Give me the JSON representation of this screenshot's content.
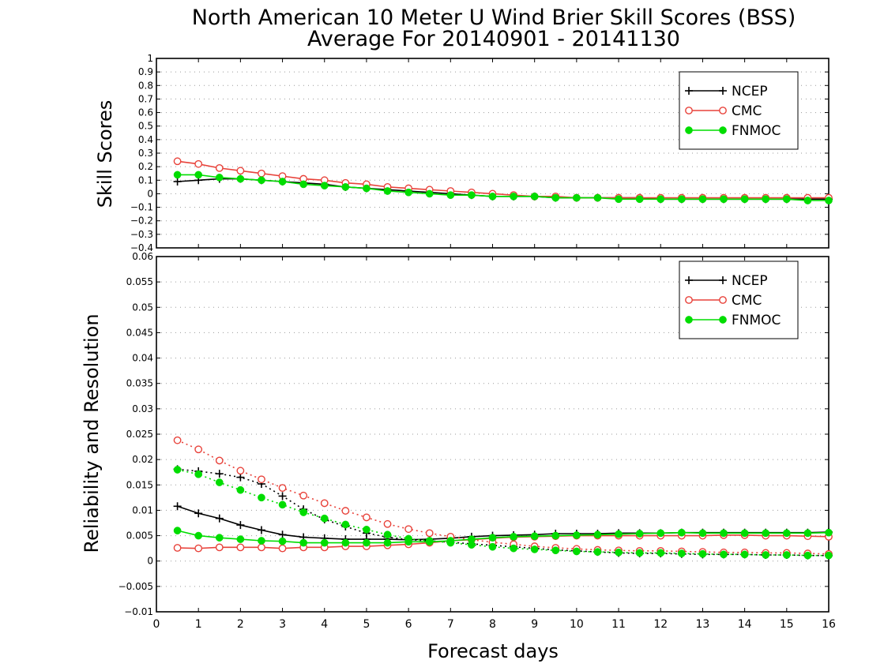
{
  "chart_data": [
    {
      "type": "line",
      "title": "North American 10 Meter U Wind Brier Skill Scores (BSS)",
      "subtitle": "Average For 20140901 - 20141130",
      "ylabel": "Skill Scores",
      "xlabel": "",
      "ylim": [
        -0.4,
        1
      ],
      "yticks": [
        "1",
        "0.9",
        "0.8",
        "0.7",
        "0.6",
        "0.5",
        "0.4",
        "0.3",
        "0.2",
        "0.1",
        "0",
        "−0.1",
        "−0.2",
        "−0.3",
        "−0.4"
      ],
      "xlim": [
        0,
        16
      ],
      "grid": true,
      "legend": "top-right",
      "x": [
        0.5,
        1,
        1.5,
        2,
        2.5,
        3,
        3.5,
        4,
        4.5,
        5,
        5.5,
        6,
        6.5,
        7,
        7.5,
        8,
        8.5,
        9,
        9.5,
        10,
        10.5,
        11,
        11.5,
        12,
        12.5,
        13,
        13.5,
        14,
        14.5,
        15,
        15.5,
        16
      ],
      "series": [
        {
          "name": "NCEP",
          "color": "#000000",
          "marker": "plus",
          "values": [
            0.09,
            0.1,
            0.11,
            0.11,
            0.1,
            0.09,
            0.08,
            0.07,
            0.05,
            0.04,
            0.03,
            0.02,
            0.01,
            0.0,
            -0.01,
            -0.02,
            -0.02,
            -0.02,
            -0.03,
            -0.03,
            -0.03,
            -0.03,
            -0.03,
            -0.04,
            -0.04,
            -0.04,
            -0.04,
            -0.04,
            -0.04,
            -0.04,
            -0.04,
            -0.04
          ]
        },
        {
          "name": "CMC",
          "color": "#e8423a",
          "marker": "open-circle",
          "values": [
            0.24,
            0.22,
            0.19,
            0.17,
            0.15,
            0.13,
            0.11,
            0.1,
            0.08,
            0.07,
            0.05,
            0.04,
            0.03,
            0.02,
            0.01,
            0.0,
            -0.01,
            -0.02,
            -0.02,
            -0.03,
            -0.03,
            -0.03,
            -0.03,
            -0.03,
            -0.03,
            -0.03,
            -0.03,
            -0.03,
            -0.03,
            -0.03,
            -0.03,
            -0.03
          ]
        },
        {
          "name": "FNMOC",
          "color": "#00dd00",
          "marker": "filled-circle",
          "values": [
            0.14,
            0.14,
            0.12,
            0.11,
            0.1,
            0.09,
            0.07,
            0.06,
            0.05,
            0.04,
            0.02,
            0.01,
            0.0,
            -0.01,
            -0.01,
            -0.02,
            -0.02,
            -0.02,
            -0.03,
            -0.03,
            -0.03,
            -0.04,
            -0.04,
            -0.04,
            -0.04,
            -0.04,
            -0.04,
            -0.04,
            -0.04,
            -0.04,
            -0.05,
            -0.05
          ]
        }
      ]
    },
    {
      "type": "line",
      "ylabel": "Reliability and Resolution",
      "xlabel": "Forecast days",
      "ylim": [
        -0.01,
        0.06
      ],
      "yticks": [
        "0.06",
        "0.055",
        "0.05",
        "0.045",
        "0.04",
        "0.035",
        "0.03",
        "0.025",
        "0.02",
        "0.015",
        "0.01",
        "0.005",
        "0",
        "−0.005",
        "−0.01"
      ],
      "xlim": [
        0,
        16
      ],
      "xticks": [
        "0",
        "1",
        "2",
        "3",
        "4",
        "5",
        "6",
        "7",
        "8",
        "9",
        "10",
        "11",
        "12",
        "13",
        "14",
        "15",
        "16"
      ],
      "grid": true,
      "legend": "top-right",
      "x": [
        0.5,
        1,
        1.5,
        2,
        2.5,
        3,
        3.5,
        4,
        4.5,
        5,
        5.5,
        6,
        6.5,
        7,
        7.5,
        8,
        8.5,
        9,
        9.5,
        10,
        10.5,
        11,
        11.5,
        12,
        12.5,
        13,
        13.5,
        14,
        14.5,
        15,
        15.5,
        16
      ],
      "series": [
        {
          "name": "NCEP",
          "color": "#000000",
          "marker": "plus",
          "style": "solid",
          "values": [
            0.0108,
            0.0094,
            0.0084,
            0.0071,
            0.0061,
            0.0052,
            0.0047,
            0.0045,
            0.0043,
            0.0043,
            0.0043,
            0.0042,
            0.0043,
            0.0045,
            0.0048,
            0.005,
            0.0051,
            0.0052,
            0.0054,
            0.0054,
            0.0054,
            0.0055,
            0.0055,
            0.0055,
            0.0056,
            0.0056,
            0.0056,
            0.0056,
            0.0056,
            0.0056,
            0.0056,
            0.0057
          ]
        },
        {
          "name": "NCEP",
          "color": "#000000",
          "marker": "plus",
          "style": "dotted",
          "values": [
            0.0181,
            0.0177,
            0.0172,
            0.0165,
            0.0152,
            0.0128,
            0.0102,
            0.0082,
            0.0068,
            0.0055,
            0.0047,
            0.0042,
            0.004,
            0.0037,
            0.0034,
            0.0031,
            0.0028,
            0.0025,
            0.0022,
            0.002,
            0.0018,
            0.0016,
            0.0015,
            0.0015,
            0.0014,
            0.0013,
            0.0013,
            0.0013,
            0.0012,
            0.0012,
            0.0011,
            0.0011
          ]
        },
        {
          "name": "CMC",
          "color": "#e8423a",
          "marker": "open-circle",
          "style": "solid",
          "values": [
            0.0026,
            0.0025,
            0.0027,
            0.0027,
            0.0027,
            0.0025,
            0.0027,
            0.0027,
            0.0029,
            0.0029,
            0.0031,
            0.0033,
            0.0036,
            0.004,
            0.0042,
            0.0045,
            0.0047,
            0.0048,
            0.0049,
            0.005,
            0.005,
            0.005,
            0.005,
            0.005,
            0.005,
            0.005,
            0.0051,
            0.0051,
            0.005,
            0.005,
            0.0049,
            0.0048
          ]
        },
        {
          "name": "CMC",
          "color": "#e8423a",
          "marker": "open-circle",
          "style": "dotted",
          "values": [
            0.0238,
            0.022,
            0.0198,
            0.0178,
            0.0161,
            0.0144,
            0.0129,
            0.0114,
            0.0099,
            0.0086,
            0.0073,
            0.0063,
            0.0055,
            0.0048,
            0.0042,
            0.0037,
            0.0033,
            0.0029,
            0.0026,
            0.0024,
            0.0022,
            0.0021,
            0.002,
            0.002,
            0.0019,
            0.0018,
            0.0017,
            0.0017,
            0.0016,
            0.0016,
            0.0015,
            0.0014
          ]
        },
        {
          "name": "FNMOC",
          "color": "#00dd00",
          "marker": "filled-circle",
          "style": "solid",
          "values": [
            0.006,
            0.005,
            0.0046,
            0.0043,
            0.004,
            0.0039,
            0.0036,
            0.0036,
            0.0036,
            0.0036,
            0.0036,
            0.0038,
            0.0038,
            0.004,
            0.0043,
            0.0046,
            0.0048,
            0.0049,
            0.005,
            0.0051,
            0.0052,
            0.0053,
            0.0054,
            0.0055,
            0.0056,
            0.0055,
            0.0055,
            0.0055,
            0.0055,
            0.0055,
            0.0055,
            0.0056
          ]
        },
        {
          "name": "FNMOC",
          "color": "#00dd00",
          "marker": "filled-circle",
          "style": "dotted",
          "values": [
            0.018,
            0.0171,
            0.0155,
            0.014,
            0.0125,
            0.0111,
            0.0096,
            0.0084,
            0.0072,
            0.0062,
            0.0052,
            0.0044,
            0.004,
            0.0036,
            0.0032,
            0.0028,
            0.0025,
            0.0023,
            0.0021,
            0.0019,
            0.0018,
            0.0017,
            0.0016,
            0.0016,
            0.0015,
            0.0014,
            0.0013,
            0.0013,
            0.0012,
            0.0012,
            0.0011,
            0.0011
          ]
        }
      ]
    }
  ]
}
